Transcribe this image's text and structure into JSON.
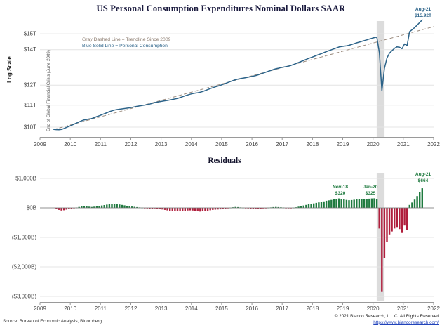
{
  "page": {
    "title": "US Personal Consumption Expenditures Nominal Dollars SAAR",
    "footer_source": "Source: Bureau of Economic Analysis, Bloomberg",
    "footer_copyright": "© 2021 Bianco Research, L.L.C. All Rights Reserved",
    "footer_link": "https://www.biancoresearch.com/"
  },
  "colors": {
    "consumption_line": "#2c6389",
    "trendline": "#9b8b7e",
    "positive_bar": "#1f7a3f",
    "negative_bar": "#b01e3c",
    "recession_band": "#dcdcdc",
    "annotation_green": "#1f7a3f",
    "annotation_blue": "#2c6389"
  },
  "chart_data": [
    {
      "type": "line",
      "title": "US Personal Consumption Expenditures Nominal Dollars SAAR",
      "ylabel": "Log Scale",
      "y_scale": "log",
      "ylim_T": [
        9.6,
        16.3
      ],
      "y_ticks": [
        {
          "label": "$15T",
          "value": 15
        },
        {
          "label": "$14T",
          "value": 14
        },
        {
          "label": "$12T",
          "value": 12
        },
        {
          "label": "$11T",
          "value": 11
        },
        {
          "label": "$10T",
          "value": 10
        }
      ],
      "x_ticks": [
        2009,
        2010,
        2011,
        2012,
        2013,
        2014,
        2015,
        2016,
        2017,
        2018,
        2019,
        2020,
        2021,
        2022
      ],
      "x_start_decimal_year": 2009.458,
      "legend": {
        "trend_label": "Gray Dashed Line = Trendline Since 2009",
        "consumption_label": "Blue Solid Line = Personal Consumption"
      },
      "gfc_annotation": "End of Global Financial Crisis (June 2009)",
      "end_annotation": {
        "line1": "Aug-21",
        "line2": "$15.92T"
      },
      "recession_band": [
        2020.12,
        2020.38
      ],
      "trendline": {
        "start_T": 9.9,
        "annual_growth_rate": 0.0356,
        "x_end": 2022.0
      }
    },
    {
      "type": "bar",
      "title": "Residuals",
      "unit": "$B",
      "ylim": [
        -3100,
        1100
      ],
      "y_ticks": [
        {
          "label": "$1,000B",
          "value": 1000
        },
        {
          "label": "$0B",
          "value": 0
        },
        {
          "label": "($1,000B)",
          "value": -1000
        },
        {
          "label": "($2,000B)",
          "value": -2000
        },
        {
          "label": "($3,000B)",
          "value": -3000
        }
      ],
      "x_ticks": [
        2009,
        2010,
        2011,
        2012,
        2013,
        2014,
        2015,
        2016,
        2017,
        2018,
        2019,
        2020,
        2021,
        2022
      ],
      "start_month": "2009-06",
      "recession_band": [
        2020.12,
        2020.38
      ],
      "annotations": [
        {
          "label": "Nov-18",
          "value_label": "$320"
        },
        {
          "label": "Jan-20",
          "value_label": "$325"
        },
        {
          "label": "Aug-21",
          "value_label": "$664"
        }
      ],
      "values_B": [
        0,
        -40,
        -70,
        -90,
        -80,
        -60,
        -45,
        -30,
        -10,
        10,
        30,
        50,
        60,
        50,
        40,
        30,
        40,
        55,
        65,
        80,
        95,
        110,
        125,
        135,
        140,
        130,
        115,
        100,
        85,
        70,
        55,
        45,
        35,
        25,
        15,
        5,
        -10,
        -20,
        -30,
        -25,
        -20,
        -35,
        -45,
        -55,
        -70,
        -85,
        -95,
        -105,
        -115,
        -120,
        -115,
        -105,
        -95,
        -90,
        -85,
        -90,
        -100,
        -115,
        -125,
        -120,
        -110,
        -95,
        -80,
        -70,
        -60,
        -55,
        -50,
        -40,
        -25,
        -10,
        5,
        20,
        30,
        25,
        15,
        5,
        -10,
        -20,
        -30,
        -35,
        -45,
        -40,
        -30,
        -20,
        -10,
        5,
        15,
        25,
        30,
        25,
        20,
        10,
        -5,
        -15,
        -10,
        5,
        20,
        40,
        60,
        80,
        100,
        120,
        135,
        150,
        170,
        185,
        200,
        220,
        240,
        255,
        270,
        285,
        300,
        320,
        305,
        285,
        270,
        260,
        265,
        275,
        285,
        290,
        295,
        300,
        305,
        312,
        318,
        325,
        310,
        -700,
        -2850,
        -1700,
        -1150,
        -900,
        -800,
        -700,
        -650,
        -720,
        -850,
        -600,
        -750,
        100,
        180,
        280,
        400,
        530,
        664
      ]
    }
  ]
}
